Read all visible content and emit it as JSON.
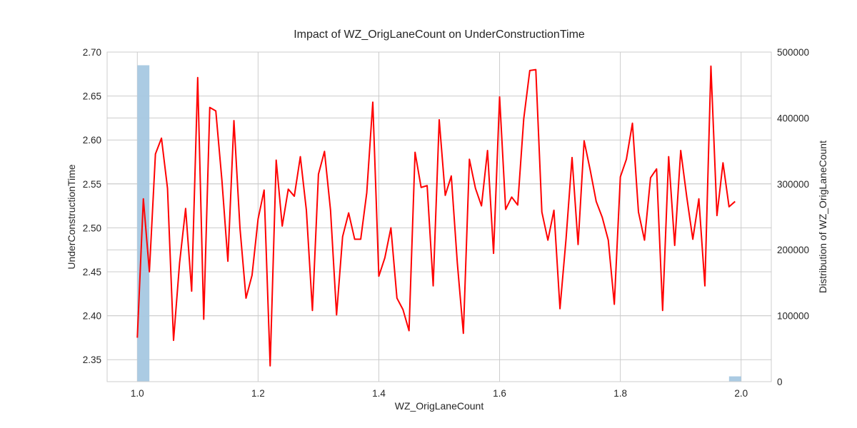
{
  "chart_data": {
    "type": "line",
    "title": "Impact of WZ_OrigLaneCount on UnderConstructionTime",
    "xlabel": "WZ_OrigLaneCount",
    "ylabel": "UnderConstructionTime",
    "y2label": "Distribution of WZ_OrigLaneCount",
    "xlim": [
      0.95,
      2.05
    ],
    "ylim": [
      2.325,
      2.7
    ],
    "y2lim": [
      0,
      500000
    ],
    "xticks": [
      1.0,
      1.2,
      1.4,
      1.6,
      1.8,
      2.0
    ],
    "xtick_labels": [
      "1.0",
      "1.2",
      "1.4",
      "1.6",
      "1.8",
      "2.0"
    ],
    "yticks": [
      2.35,
      2.4,
      2.45,
      2.5,
      2.55,
      2.6,
      2.65,
      2.7
    ],
    "ytick_labels": [
      "2.35",
      "2.40",
      "2.45",
      "2.50",
      "2.55",
      "2.60",
      "2.65",
      "2.70"
    ],
    "y2ticks": [
      0,
      100000,
      200000,
      300000,
      400000,
      500000
    ],
    "y2tick_labels": [
      "0",
      "100000",
      "200000",
      "300000",
      "400000",
      "500000"
    ],
    "grid": true,
    "line_color": "#ff0000",
    "bar_color": "#a6c8e2",
    "histogram": {
      "bins": [
        {
          "x0": 1.0,
          "x1": 1.02,
          "count": 480000
        },
        {
          "x0": 1.98,
          "x1": 2.0,
          "count": 8000
        }
      ]
    },
    "series": [
      {
        "x": [
          1.0,
          1.01,
          1.02,
          1.03,
          1.04,
          1.05,
          1.06,
          1.07,
          1.08,
          1.09,
          1.1,
          1.11,
          1.12,
          1.13,
          1.14,
          1.15,
          1.16,
          1.17,
          1.18,
          1.19,
          1.2,
          1.21,
          1.22,
          1.23,
          1.24,
          1.25,
          1.26,
          1.27,
          1.28,
          1.29,
          1.3,
          1.31,
          1.32,
          1.33,
          1.34,
          1.35,
          1.36,
          1.37,
          1.38,
          1.39,
          1.4,
          1.41,
          1.42,
          1.43,
          1.44,
          1.45,
          1.46,
          1.47,
          1.48,
          1.49,
          1.5,
          1.51,
          1.52,
          1.53,
          1.54,
          1.55,
          1.56,
          1.57,
          1.58,
          1.59,
          1.6,
          1.61,
          1.62,
          1.63,
          1.64,
          1.65,
          1.66,
          1.67,
          1.68,
          1.69,
          1.7,
          1.71,
          1.72,
          1.73,
          1.74,
          1.75,
          1.76,
          1.77,
          1.78,
          1.79,
          1.8,
          1.81,
          1.82,
          1.83,
          1.84,
          1.85,
          1.86,
          1.87,
          1.88,
          1.89,
          1.9,
          1.91,
          1.92,
          1.93,
          1.94,
          1.95,
          1.96,
          1.97,
          1.98,
          1.99
        ],
        "values": [
          2.375,
          2.533,
          2.45,
          2.584,
          2.602,
          2.545,
          2.372,
          2.46,
          2.522,
          2.428,
          2.671,
          2.396,
          2.637,
          2.633,
          2.555,
          2.462,
          2.622,
          2.5,
          2.42,
          2.446,
          2.51,
          2.543,
          2.343,
          2.577,
          2.502,
          2.544,
          2.536,
          2.581,
          2.52,
          2.406,
          2.561,
          2.587,
          2.52,
          2.401,
          2.49,
          2.517,
          2.487,
          2.487,
          2.54,
          2.643,
          2.445,
          2.466,
          2.5,
          2.42,
          2.407,
          2.383,
          2.586,
          2.546,
          2.548,
          2.434,
          2.623,
          2.537,
          2.559,
          2.46,
          2.38,
          2.578,
          2.545,
          2.525,
          2.588,
          2.471,
          2.649,
          2.521,
          2.535,
          2.526,
          2.624,
          2.679,
          2.68,
          2.518,
          2.486,
          2.52,
          2.408,
          2.487,
          2.58,
          2.481,
          2.599,
          2.566,
          2.53,
          2.512,
          2.486,
          2.413,
          2.558,
          2.578,
          2.619,
          2.518,
          2.486,
          2.557,
          2.567,
          2.406,
          2.581,
          2.48,
          2.588,
          2.535,
          2.487,
          2.533,
          2.434,
          2.684,
          2.514,
          2.574,
          2.524,
          2.53
        ]
      }
    ]
  }
}
